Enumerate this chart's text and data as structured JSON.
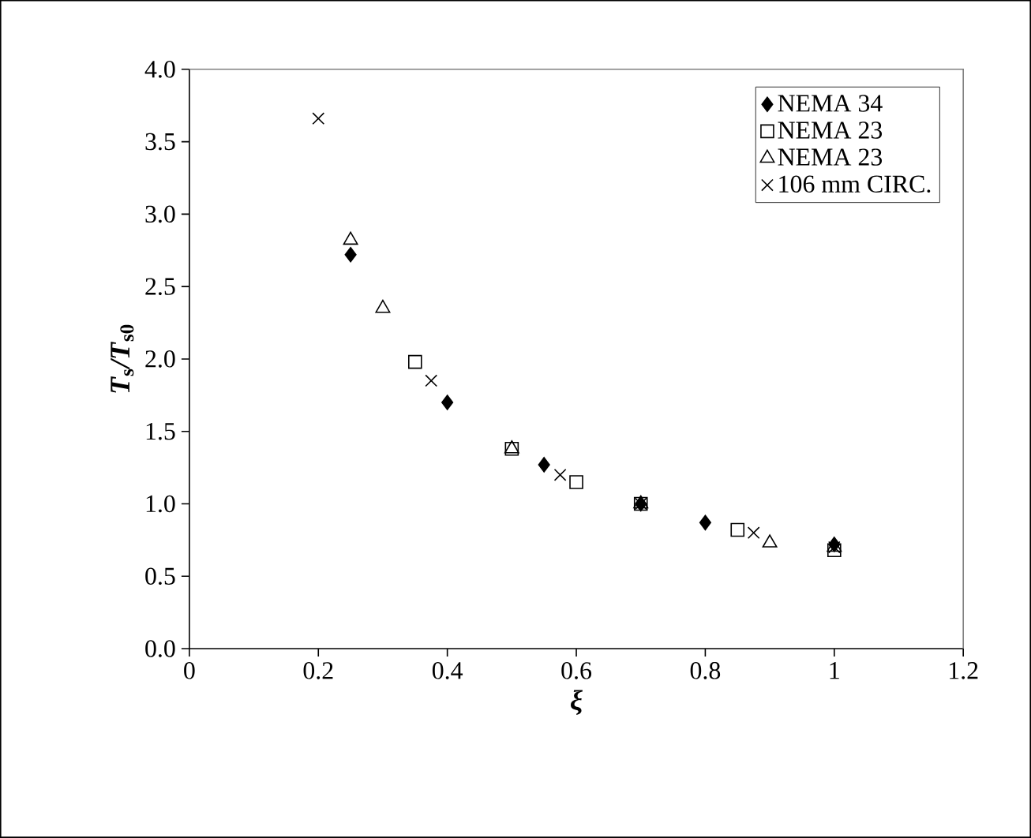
{
  "chart_data": {
    "type": "scatter",
    "xlabel": "ξ",
    "ylabel": "*T*$_{s}$*/T*$_{s0}$",
    "xlim": [
      0,
      1.2
    ],
    "ylim": [
      0,
      4.0
    ],
    "xticks": [
      0,
      0.2,
      0.4,
      0.6,
      0.8,
      1,
      1.2
    ],
    "yticks": [
      {
        "value": 0,
        "label": "0.0"
      },
      {
        "value": 0.5,
        "label": "0.5"
      },
      {
        "value": 1,
        "label": "1.0"
      },
      {
        "value": 1.5,
        "label": "1.5"
      },
      {
        "value": 2,
        "label": "2.0"
      },
      {
        "value": 2.5,
        "label": "2.5"
      },
      {
        "value": 3,
        "label": "3.0"
      },
      {
        "value": 3.5,
        "label": "3.5"
      },
      {
        "value": 4,
        "label": "4.0"
      }
    ],
    "grid": false,
    "legend": "top right",
    "series": [
      {
        "name": "NEMA 34",
        "color": "#000000",
        "marker": "diamond",
        "x": [
          0.25,
          0.4,
          0.55,
          0.7,
          0.8,
          1.0
        ],
        "values": [
          2.72,
          1.7,
          1.27,
          1.0,
          0.87,
          0.72
        ]
      },
      {
        "name": "NEMA 23",
        "color": "#000000",
        "marker": "square",
        "x": [
          0.35,
          0.5,
          0.6,
          0.7,
          0.85,
          1.0
        ],
        "values": [
          1.98,
          1.38,
          1.15,
          1.0,
          0.82,
          0.68
        ]
      },
      {
        "name": "NEMA 23",
        "color": "#000000",
        "marker": "triangle",
        "x": [
          0.25,
          0.3,
          0.5,
          0.7,
          0.9,
          1.0
        ],
        "values": [
          2.82,
          2.35,
          1.38,
          1.0,
          0.73,
          0.7
        ]
      },
      {
        "name": "106 mm CIRC.",
        "color": "#000000",
        "marker": "cross",
        "x": [
          0.2,
          0.375,
          0.575,
          0.7,
          0.875,
          1.0
        ],
        "values": [
          3.66,
          1.85,
          1.2,
          1.0,
          0.8,
          0.7
        ]
      }
    ]
  }
}
